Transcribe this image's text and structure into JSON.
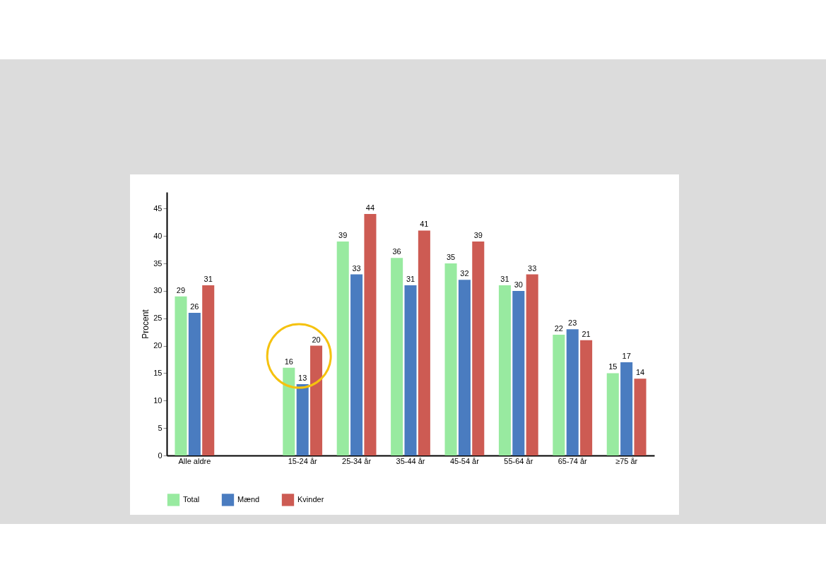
{
  "chart_data": {
    "type": "bar",
    "ylabel": "Procent",
    "categories": [
      "Alle aldre",
      null,
      "15-24 år",
      "25-34 år",
      "35-44 år",
      "45-54 år",
      "55-64 år",
      "65-74 år",
      "≥75 år"
    ],
    "series": [
      {
        "name": "Total",
        "color": "#98eaa0",
        "values": [
          29,
          null,
          16,
          39,
          36,
          35,
          31,
          22,
          15
        ]
      },
      {
        "name": "Mænd",
        "color": "#4a7cc0",
        "values": [
          26,
          null,
          13,
          33,
          31,
          32,
          30,
          23,
          17
        ]
      },
      {
        "name": "Kvinder",
        "color": "#cd5b53",
        "values": [
          31,
          null,
          20,
          44,
          41,
          39,
          33,
          21,
          14
        ]
      }
    ],
    "ylim": [
      0,
      48
    ],
    "yticks": [
      0,
      5,
      10,
      15,
      20,
      25,
      30,
      35,
      40,
      45
    ],
    "data_labels": true,
    "grid": false,
    "legend": "bottom"
  }
}
